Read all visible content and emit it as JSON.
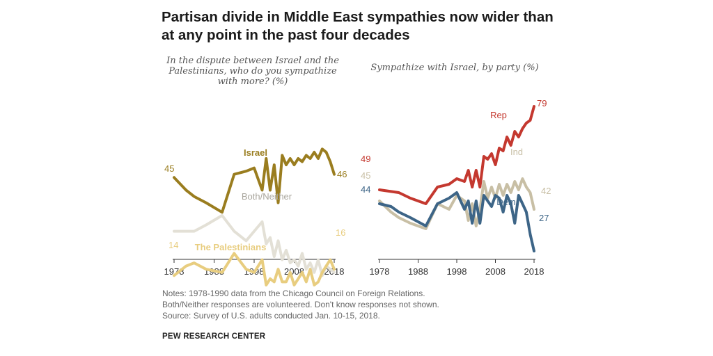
{
  "title": "Partisan divide in Middle East sympathies now wider than at any point in the past four decades",
  "notes": [
    "Notes: 1978-1990 data from the Chicago Council on Foreign Relations.",
    "Both/Neither responses are volunteered. Don't know responses not shown.",
    "Source: Survey of U.S. adults conducted Jan. 10-15, 2018."
  ],
  "source": "PEW RESEARCH CENTER",
  "colors": {
    "israel": "#9a7d1f",
    "palestinians": "#e8cd7f",
    "both_neither": "#e3e0d6",
    "rep": "#c4382f",
    "ind": "#c8bfa5",
    "dem": "#3d6587",
    "axis": "#333333"
  },
  "chart_data": [
    {
      "type": "line",
      "title": "In the dispute between Israel and the Palestinians, who do you sympathize with more? (%)",
      "xlim": [
        1978,
        2018
      ],
      "ylim": [
        0,
        100
      ],
      "xticks": [
        "1978",
        "1988",
        "1998",
        "2008",
        "2018"
      ],
      "series": [
        {
          "name": "Israel",
          "label": "Israel",
          "color_key": "israel",
          "start_label": "45",
          "end_label": "46",
          "points": [
            [
              1978,
              45
            ],
            [
              1981,
              41
            ],
            [
              1983,
              39
            ],
            [
              1986,
              37
            ],
            [
              1990,
              34
            ],
            [
              1993,
              46
            ],
            [
              1996,
              47
            ],
            [
              1998,
              48
            ],
            [
              2000,
              41
            ],
            [
              2001,
              51
            ],
            [
              2002,
              41
            ],
            [
              2003,
              49
            ],
            [
              2004,
              37
            ],
            [
              2005,
              52
            ],
            [
              2006,
              49
            ],
            [
              2007,
              51
            ],
            [
              2008,
              49
            ],
            [
              2009,
              51
            ],
            [
              2010,
              50
            ],
            [
              2011,
              52
            ],
            [
              2012,
              51
            ],
            [
              2013,
              53
            ],
            [
              2014,
              51
            ],
            [
              2015,
              54
            ],
            [
              2016,
              53
            ],
            [
              2017,
              50
            ],
            [
              2018,
              46
            ]
          ]
        },
        {
          "name": "Both/Neither",
          "label": "Both/Neither",
          "color_key": "both_neither",
          "points": [
            [
              1978,
              28
            ],
            [
              1983,
              28
            ],
            [
              1986,
              30
            ],
            [
              1990,
              33
            ],
            [
              1993,
              28
            ],
            [
              1996,
              25
            ],
            [
              1998,
              28
            ],
            [
              2000,
              31
            ],
            [
              2001,
              24
            ],
            [
              2002,
              26
            ],
            [
              2003,
              20
            ],
            [
              2004,
              25
            ],
            [
              2005,
              19
            ],
            [
              2006,
              22
            ],
            [
              2007,
              18
            ],
            [
              2008,
              19
            ],
            [
              2009,
              17
            ],
            [
              2010,
              21
            ],
            [
              2011,
              16
            ],
            [
              2012,
              18
            ],
            [
              2013,
              15
            ],
            [
              2014,
              19
            ],
            [
              2015,
              14
            ],
            [
              2016,
              17
            ],
            [
              2017,
              16
            ],
            [
              2018,
              15
            ]
          ]
        },
        {
          "name": "The Palestinians",
          "label": "The Palestinians",
          "color_key": "palestinians",
          "start_label": "14",
          "end_label": "16",
          "points": [
            [
              1978,
              14
            ],
            [
              1981,
              17
            ],
            [
              1983,
              18
            ],
            [
              1986,
              16
            ],
            [
              1990,
              15
            ],
            [
              1993,
              21
            ],
            [
              1996,
              16
            ],
            [
              1998,
              15
            ],
            [
              2000,
              19
            ],
            [
              2001,
              11
            ],
            [
              2002,
              13
            ],
            [
              2003,
              12
            ],
            [
              2004,
              16
            ],
            [
              2005,
              12
            ],
            [
              2006,
              12
            ],
            [
              2007,
              15
            ],
            [
              2008,
              11
            ],
            [
              2009,
              13
            ],
            [
              2010,
              15
            ],
            [
              2011,
              12
            ],
            [
              2012,
              16
            ],
            [
              2013,
              11
            ],
            [
              2014,
              12
            ],
            [
              2015,
              15
            ],
            [
              2016,
              17
            ],
            [
              2017,
              19
            ],
            [
              2018,
              16
            ]
          ]
        }
      ]
    },
    {
      "type": "line",
      "title": "Sympathize with Israel, by party (%)",
      "xlim": [
        1978,
        2018
      ],
      "ylim": [
        0,
        100
      ],
      "xticks": [
        "1978",
        "1988",
        "1998",
        "2008",
        "2018"
      ],
      "series": [
        {
          "name": "Rep",
          "label": "Rep",
          "color_key": "rep",
          "start_label": "49",
          "end_label": "79",
          "points": [
            [
              1978,
              49
            ],
            [
              1983,
              48
            ],
            [
              1986,
              46
            ],
            [
              1990,
              44
            ],
            [
              1993,
              50
            ],
            [
              1996,
              51
            ],
            [
              1998,
              53
            ],
            [
              2000,
              52
            ],
            [
              2001,
              56
            ],
            [
              2002,
              50
            ],
            [
              2003,
              56
            ],
            [
              2004,
              50
            ],
            [
              2005,
              61
            ],
            [
              2006,
              60
            ],
            [
              2007,
              62
            ],
            [
              2008,
              58
            ],
            [
              2009,
              64
            ],
            [
              2010,
              63
            ],
            [
              2011,
              68
            ],
            [
              2012,
              65
            ],
            [
              2013,
              70
            ],
            [
              2014,
              68
            ],
            [
              2015,
              71
            ],
            [
              2016,
              73
            ],
            [
              2017,
              74
            ],
            [
              2018,
              79
            ]
          ]
        },
        {
          "name": "Ind",
          "label": "Ind",
          "color_key": "ind",
          "start_label": "45",
          "end_label": "42",
          "points": [
            [
              1978,
              45
            ],
            [
              1981,
              41
            ],
            [
              1983,
              39
            ],
            [
              1986,
              37
            ],
            [
              1990,
              35
            ],
            [
              1993,
              44
            ],
            [
              1996,
              42
            ],
            [
              1998,
              47
            ],
            [
              2000,
              45
            ],
            [
              2001,
              38
            ],
            [
              2002,
              44
            ],
            [
              2003,
              36
            ],
            [
              2004,
              42
            ],
            [
              2005,
              52
            ],
            [
              2006,
              46
            ],
            [
              2007,
              50
            ],
            [
              2008,
              46
            ],
            [
              2009,
              51
            ],
            [
              2010,
              47
            ],
            [
              2011,
              51
            ],
            [
              2012,
              48
            ],
            [
              2013,
              52
            ],
            [
              2014,
              49
            ],
            [
              2015,
              53
            ],
            [
              2016,
              50
            ],
            [
              2017,
              48
            ],
            [
              2018,
              42
            ]
          ]
        },
        {
          "name": "Dem",
          "label": "Dem",
          "color_key": "dem",
          "start_label": "44",
          "end_label": "27",
          "points": [
            [
              1978,
              44
            ],
            [
              1981,
              43
            ],
            [
              1983,
              41
            ],
            [
              1986,
              39
            ],
            [
              1990,
              36
            ],
            [
              1993,
              44
            ],
            [
              1996,
              46
            ],
            [
              1998,
              48
            ],
            [
              2000,
              42
            ],
            [
              2001,
              45
            ],
            [
              2002,
              37
            ],
            [
              2003,
              45
            ],
            [
              2004,
              37
            ],
            [
              2005,
              47
            ],
            [
              2006,
              45
            ],
            [
              2007,
              43
            ],
            [
              2008,
              47
            ],
            [
              2009,
              46
            ],
            [
              2010,
              41
            ],
            [
              2011,
              47
            ],
            [
              2012,
              44
            ],
            [
              2013,
              37
            ],
            [
              2014,
              47
            ],
            [
              2015,
              44
            ],
            [
              2016,
              41
            ],
            [
              2017,
              33
            ],
            [
              2018,
              27
            ]
          ]
        }
      ]
    }
  ]
}
